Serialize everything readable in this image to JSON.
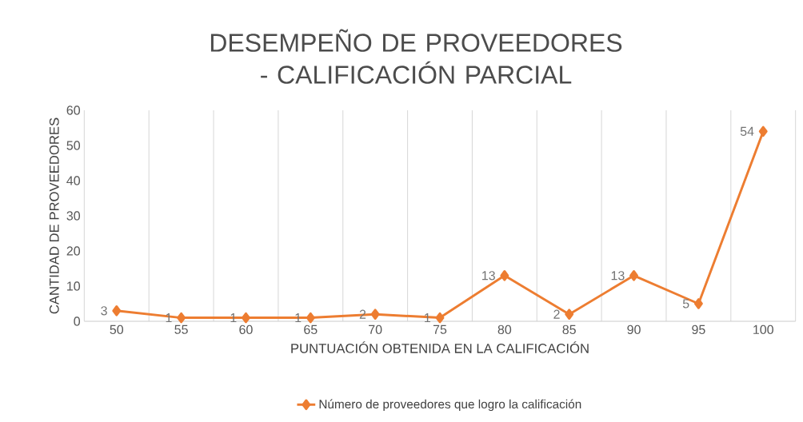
{
  "chart_data": {
    "type": "line",
    "title": "DESEMPEÑO DE PROVEEDORES - CALIFICACIÓN PARCIAL",
    "xlabel": "PUNTUACIÓN OBTENIDA EN LA CALIFICACIÓN",
    "ylabel": "CANTIDAD DE PROVEEDORES",
    "categories": [
      "50",
      "55",
      "60",
      "65",
      "70",
      "75",
      "80",
      "85",
      "90",
      "95",
      "100"
    ],
    "series": [
      {
        "name": "Número de proveedores que logro la calificación",
        "color": "#ed7d31",
        "values": [
          3,
          1,
          1,
          1,
          2,
          1,
          13,
          2,
          13,
          5,
          54
        ]
      }
    ],
    "ylim": [
      0,
      60
    ],
    "yticks": [
      0,
      10,
      20,
      30,
      40,
      50,
      60
    ],
    "grid": "x",
    "legend": "bottom",
    "marker": "diamond",
    "line_style": "solid",
    "data_labels": true
  }
}
